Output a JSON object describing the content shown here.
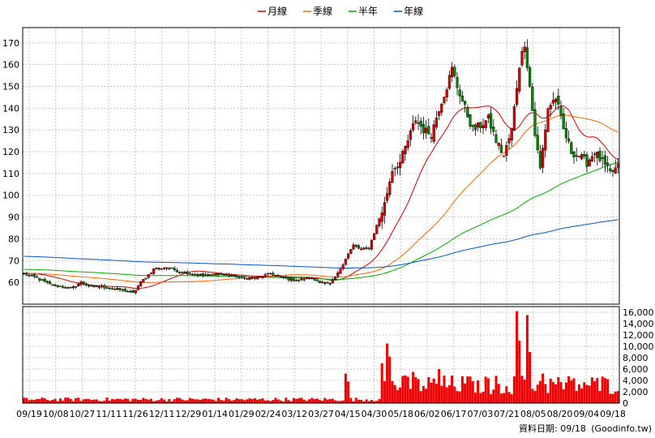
{
  "chart_data": {
    "type": "candlestick",
    "legend": [
      {
        "label": "月線",
        "color": "#cc0000"
      },
      {
        "label": "季線",
        "color": "#ff6600"
      },
      {
        "label": "半年",
        "color": "#00aa00"
      },
      {
        "label": "年線",
        "color": "#0055cc"
      }
    ],
    "price_axis": {
      "ticks": [
        60,
        70,
        80,
        90,
        100,
        110,
        120,
        130,
        140,
        150,
        160,
        170
      ],
      "range": [
        50,
        177
      ]
    },
    "volume_axis": {
      "ticks": [
        "0",
        "2,000",
        "4,000",
        "6,000",
        "8,000",
        "10,000",
        "12,000",
        "14,000",
        "16,000"
      ],
      "values": [
        0,
        2000,
        4000,
        6000,
        8000,
        10000,
        12000,
        14000,
        16000
      ],
      "range": [
        0,
        17000
      ]
    },
    "x_labels": [
      "09/19",
      "10/08",
      "10/27",
      "11/11",
      "11/26",
      "12/11",
      "12/29",
      "01/14",
      "01/29",
      "02/24",
      "03/12",
      "03/27",
      "04/15",
      "04/30",
      "05/18",
      "06/02",
      "06/17",
      "07/03",
      "07/21",
      "08/05",
      "08/20",
      "09/04",
      "09/18"
    ],
    "close_anchors": [
      [
        0,
        64
      ],
      [
        5,
        62
      ],
      [
        10,
        59
      ],
      [
        15,
        58
      ],
      [
        18,
        57
      ],
      [
        22,
        60
      ],
      [
        26,
        58
      ],
      [
        30,
        58
      ],
      [
        35,
        57
      ],
      [
        40,
        56
      ],
      [
        42,
        55
      ],
      [
        45,
        60
      ],
      [
        50,
        66
      ],
      [
        55,
        67
      ],
      [
        60,
        65
      ],
      [
        65,
        64
      ],
      [
        70,
        63
      ],
      [
        75,
        64
      ],
      [
        80,
        63
      ],
      [
        85,
        62
      ],
      [
        90,
        62
      ],
      [
        95,
        64
      ],
      [
        100,
        62
      ],
      [
        105,
        61
      ],
      [
        110,
        62
      ],
      [
        115,
        60
      ],
      [
        118,
        59
      ],
      [
        121,
        64
      ],
      [
        124,
        71
      ],
      [
        127,
        77
      ],
      [
        130,
        75
      ],
      [
        133,
        76
      ],
      [
        136,
        86
      ],
      [
        139,
        96
      ],
      [
        142,
        112
      ],
      [
        145,
        115
      ],
      [
        148,
        125
      ],
      [
        151,
        135
      ],
      [
        154,
        130
      ],
      [
        157,
        128
      ],
      [
        160,
        140
      ],
      [
        163,
        150
      ],
      [
        165,
        158
      ],
      [
        167,
        150
      ],
      [
        170,
        140
      ],
      [
        173,
        130
      ],
      [
        176,
        132
      ],
      [
        179,
        135
      ],
      [
        182,
        125
      ],
      [
        185,
        118
      ],
      [
        188,
        130
      ],
      [
        191,
        160
      ],
      [
        193,
        170
      ],
      [
        195,
        150
      ],
      [
        197,
        128
      ],
      [
        199,
        112
      ],
      [
        202,
        140
      ],
      [
        205,
        145
      ],
      [
        208,
        130
      ],
      [
        211,
        120
      ],
      [
        214,
        118
      ],
      [
        217,
        115
      ],
      [
        220,
        120
      ],
      [
        223,
        115
      ],
      [
        226,
        110
      ],
      [
        229,
        113
      ]
    ],
    "volume_spikes": [
      [
        124,
        5200
      ],
      [
        125,
        3800
      ],
      [
        140,
        10500
      ],
      [
        141,
        8200
      ],
      [
        138,
        7000
      ],
      [
        150,
        5500
      ],
      [
        160,
        6000
      ],
      [
        175,
        4000
      ],
      [
        190,
        16200
      ],
      [
        191,
        11000
      ],
      [
        194,
        15500
      ],
      [
        195,
        9000
      ],
      [
        200,
        5200
      ]
    ],
    "footer": "資料日期: 09/18",
    "source": "(Goodinfo.tw)"
  }
}
